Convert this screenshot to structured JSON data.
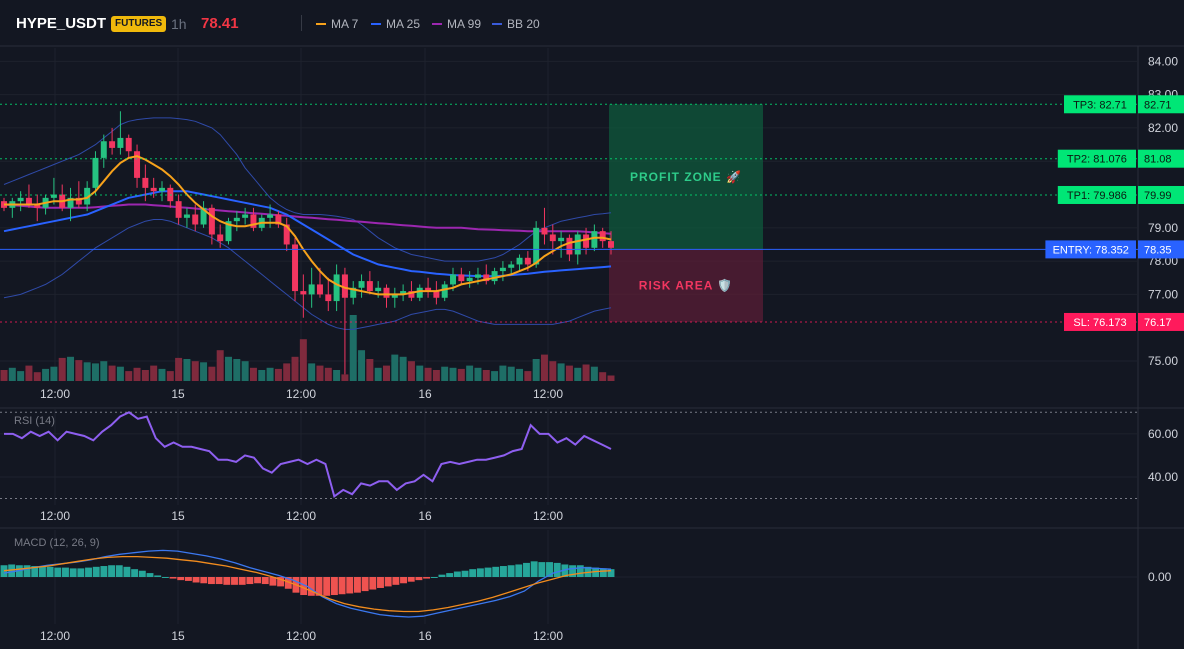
{
  "header": {
    "symbol": "HYPE_USDT",
    "badge": "FUTURES",
    "timeframe": "1h",
    "price": "78.41"
  },
  "legend": [
    {
      "label": "MA 7",
      "color": "#f7a21b"
    },
    {
      "label": "MA 25",
      "color": "#2962ff"
    },
    {
      "label": "MA 99",
      "color": "#9c27b0"
    },
    {
      "label": "BB 20",
      "color": "#3a5bd9"
    }
  ],
  "colors": {
    "up": "#26c281",
    "down": "#f23660",
    "volume_up": "#1e6e66",
    "volume_down": "#7f2a3d",
    "tp": "#00e676",
    "entry": "#2962ff",
    "sl": "#ff1a5c",
    "rsi": "#8e5ff0",
    "macd": "#3b78f0",
    "signal": "#f28c1e",
    "hist_up": "#26a69a",
    "hist_down": "#ef5350"
  },
  "chart_data": [
    {
      "type": "candlestick",
      "ylim": [
        74.4,
        84.4
      ],
      "yticks": [
        "84.00",
        "83.00",
        "82.00",
        "81.00",
        "79.00",
        "78.00",
        "77.00",
        "75.00"
      ],
      "xticks": [
        "12:00",
        "15",
        "12:00",
        "16",
        "12:00"
      ],
      "levels": [
        {
          "name": "TP3",
          "label": "TP3: 82.71",
          "value": 82.71,
          "axis_label": "82.71"
        },
        {
          "name": "TP2",
          "label": "TP2: 81.076",
          "value": 81.076,
          "axis_label": "81.08"
        },
        {
          "name": "TP1",
          "label": "TP1: 79.986",
          "value": 79.986,
          "axis_label": "79.99"
        },
        {
          "name": "ENTRY",
          "label": "ENTRY: 78.352",
          "value": 78.352,
          "axis_label": "78.35"
        },
        {
          "name": "SL",
          "label": "SL: 76.173",
          "value": 76.173,
          "axis_label": "76.17"
        }
      ],
      "zones": {
        "profit_label": "PROFIT ZONE 🚀",
        "risk_label": "RISK AREA 🛡️"
      },
      "candles": [
        [
          79.8,
          79.9,
          79.5,
          79.6
        ],
        [
          79.6,
          79.9,
          79.3,
          79.8
        ],
        [
          79.8,
          80.1,
          79.5,
          79.9
        ],
        [
          79.9,
          80.3,
          79.6,
          79.7
        ],
        [
          79.7,
          80.0,
          79.2,
          79.6
        ],
        [
          79.6,
          80.0,
          79.4,
          79.9
        ],
        [
          79.9,
          80.5,
          79.7,
          80.0
        ],
        [
          80.0,
          80.3,
          79.5,
          79.6
        ],
        [
          79.6,
          80.2,
          79.2,
          79.9
        ],
        [
          79.9,
          80.4,
          79.6,
          79.7
        ],
        [
          79.7,
          80.4,
          79.5,
          80.2
        ],
        [
          80.2,
          81.3,
          80.0,
          81.1
        ],
        [
          81.1,
          81.8,
          80.8,
          81.6
        ],
        [
          81.6,
          82.0,
          81.2,
          81.4
        ],
        [
          81.4,
          82.5,
          81.2,
          81.7
        ],
        [
          81.7,
          81.8,
          81.1,
          81.3
        ],
        [
          81.3,
          81.5,
          80.2,
          80.5
        ],
        [
          80.5,
          80.9,
          79.8,
          80.2
        ],
        [
          80.2,
          80.5,
          79.9,
          80.1
        ],
        [
          80.1,
          80.4,
          79.8,
          80.2
        ],
        [
          80.2,
          80.3,
          79.6,
          79.8
        ],
        [
          79.8,
          80.0,
          79.1,
          79.3
        ],
        [
          79.3,
          79.6,
          79.0,
          79.4
        ],
        [
          79.4,
          79.7,
          78.9,
          79.1
        ],
        [
          79.1,
          79.8,
          79.0,
          79.6
        ],
        [
          79.6,
          79.7,
          78.5,
          78.8
        ],
        [
          78.8,
          79.1,
          78.4,
          78.6
        ],
        [
          78.6,
          79.3,
          78.5,
          79.2
        ],
        [
          79.2,
          79.5,
          78.9,
          79.3
        ],
        [
          79.3,
          79.6,
          79.1,
          79.4
        ],
        [
          79.4,
          79.6,
          78.9,
          79.0
        ],
        [
          79.0,
          79.4,
          78.9,
          79.3
        ],
        [
          79.3,
          79.7,
          79.0,
          79.4
        ],
        [
          79.4,
          79.5,
          79.0,
          79.1
        ],
        [
          79.1,
          79.3,
          78.3,
          78.5
        ],
        [
          78.5,
          78.7,
          76.8,
          77.1
        ],
        [
          77.1,
          77.6,
          76.3,
          77.0
        ],
        [
          77.0,
          77.8,
          76.6,
          77.3
        ],
        [
          77.3,
          77.8,
          76.9,
          77.0
        ],
        [
          77.0,
          77.5,
          76.5,
          76.8
        ],
        [
          76.8,
          77.9,
          76.5,
          77.6
        ],
        [
          77.6,
          77.8,
          74.6,
          76.9
        ],
        [
          76.9,
          77.4,
          76.7,
          77.2
        ],
        [
          77.2,
          77.6,
          76.9,
          77.4
        ],
        [
          77.4,
          77.7,
          77.0,
          77.1
        ],
        [
          77.1,
          77.4,
          76.9,
          77.2
        ],
        [
          77.2,
          77.3,
          76.6,
          76.9
        ],
        [
          76.9,
          77.2,
          76.6,
          77.0
        ],
        [
          77.0,
          77.3,
          76.8,
          77.1
        ],
        [
          77.1,
          77.4,
          76.8,
          76.9
        ],
        [
          76.9,
          77.3,
          76.8,
          77.2
        ],
        [
          77.2,
          77.5,
          76.9,
          77.1
        ],
        [
          77.1,
          77.4,
          76.7,
          76.9
        ],
        [
          76.9,
          77.4,
          76.8,
          77.3
        ],
        [
          77.3,
          77.8,
          77.1,
          77.6
        ],
        [
          77.6,
          77.8,
          77.3,
          77.4
        ],
        [
          77.4,
          77.7,
          77.2,
          77.5
        ],
        [
          77.5,
          77.8,
          77.3,
          77.6
        ],
        [
          77.6,
          77.9,
          77.3,
          77.4
        ],
        [
          77.4,
          77.8,
          77.3,
          77.7
        ],
        [
          77.7,
          78.0,
          77.4,
          77.8
        ],
        [
          77.8,
          78.0,
          77.6,
          77.9
        ],
        [
          77.9,
          78.2,
          77.7,
          78.1
        ],
        [
          78.1,
          78.3,
          77.7,
          77.9
        ],
        [
          77.9,
          79.2,
          77.8,
          79.0
        ],
        [
          79.0,
          79.6,
          78.5,
          78.8
        ],
        [
          78.8,
          79.1,
          78.2,
          78.6
        ],
        [
          78.6,
          78.9,
          78.1,
          78.7
        ],
        [
          78.7,
          78.8,
          78.0,
          78.2
        ],
        [
          78.2,
          78.9,
          77.9,
          78.8
        ],
        [
          78.8,
          79.0,
          78.2,
          78.4
        ],
        [
          78.4,
          79.1,
          78.3,
          78.9
        ],
        [
          78.9,
          79.0,
          78.4,
          78.6
        ],
        [
          78.6,
          78.9,
          78.2,
          78.4
        ]
      ],
      "ma7": [
        79.7,
        79.7,
        79.7,
        79.7,
        79.7,
        79.75,
        79.8,
        79.8,
        79.85,
        79.85,
        79.9,
        80.1,
        80.4,
        80.7,
        80.95,
        81.1,
        81.15,
        81.05,
        80.9,
        80.75,
        80.55,
        80.3,
        80.0,
        79.75,
        79.55,
        79.35,
        79.2,
        79.1,
        79.05,
        79.05,
        79.1,
        79.15,
        79.15,
        79.15,
        79.05,
        78.75,
        78.35,
        78.0,
        77.7,
        77.45,
        77.3,
        77.2,
        77.15,
        77.1,
        77.05,
        77.0,
        77.0,
        77.0,
        77.0,
        77.05,
        77.1,
        77.1,
        77.1,
        77.15,
        77.2,
        77.3,
        77.35,
        77.4,
        77.45,
        77.5,
        77.55,
        77.6,
        77.7,
        77.8,
        77.95,
        78.15,
        78.3,
        78.45,
        78.55,
        78.6,
        78.65,
        78.7,
        78.7,
        78.65
      ],
      "ma25": [
        78.9,
        78.95,
        79.0,
        79.05,
        79.1,
        79.15,
        79.2,
        79.25,
        79.3,
        79.35,
        79.4,
        79.5,
        79.6,
        79.7,
        79.8,
        79.9,
        79.95,
        80.0,
        80.05,
        80.1,
        80.1,
        80.1,
        80.1,
        80.05,
        80.0,
        79.95,
        79.9,
        79.85,
        79.8,
        79.75,
        79.7,
        79.65,
        79.6,
        79.5,
        79.4,
        79.25,
        79.1,
        78.95,
        78.8,
        78.65,
        78.5,
        78.35,
        78.2,
        78.1,
        78.0,
        77.9,
        77.85,
        77.8,
        77.75,
        77.7,
        77.68,
        77.65,
        77.62,
        77.6,
        77.58,
        77.57,
        77.56,
        77.55,
        77.55,
        77.55,
        77.56,
        77.58,
        77.6,
        77.62,
        77.65,
        77.68,
        77.7,
        77.72,
        77.74,
        77.76,
        77.78,
        77.8,
        77.82,
        77.84
      ],
      "ma99": [
        79.7,
        79.68,
        79.66,
        79.64,
        79.62,
        79.6,
        79.6,
        79.6,
        79.6,
        79.6,
        79.6,
        79.62,
        79.64,
        79.66,
        79.68,
        79.7,
        79.7,
        79.7,
        79.68,
        79.66,
        79.64,
        79.62,
        79.6,
        79.58,
        79.56,
        79.54,
        79.52,
        79.5,
        79.48,
        79.46,
        79.44,
        79.42,
        79.4,
        79.38,
        79.36,
        79.34,
        79.32,
        79.3,
        79.28,
        79.26,
        79.24,
        79.22,
        79.2,
        79.18,
        79.16,
        79.14,
        79.12,
        79.1,
        79.08,
        79.06,
        79.04,
        79.02,
        79.0,
        79.0,
        79.0,
        79.0,
        78.98,
        78.96,
        78.95,
        78.94,
        78.93,
        78.92,
        78.91,
        78.9,
        78.9,
        78.9,
        78.9,
        78.9,
        78.9,
        78.9,
        78.88,
        78.86,
        78.84,
        78.82
      ],
      "bb_upper": [
        80.3,
        80.4,
        80.5,
        80.6,
        80.7,
        80.8,
        80.9,
        81.0,
        81.1,
        81.2,
        81.35,
        81.5,
        81.7,
        81.9,
        82.1,
        82.2,
        82.25,
        82.28,
        82.3,
        82.3,
        82.3,
        82.28,
        82.25,
        82.2,
        82.1,
        82.0,
        81.8,
        81.5,
        81.2,
        80.8,
        80.5,
        80.2,
        79.9,
        79.7,
        79.55,
        79.45,
        79.4,
        79.4,
        79.4,
        79.38,
        79.35,
        79.3,
        79.25,
        79.1,
        78.9,
        78.7,
        78.55,
        78.4,
        78.3,
        78.2,
        78.15,
        78.1,
        78.05,
        78.0,
        78.0,
        78.0,
        78.0,
        78.0,
        78.05,
        78.1,
        78.2,
        78.35,
        78.5,
        78.7,
        78.9,
        79.0,
        79.1,
        79.2,
        79.25,
        79.3,
        79.35,
        79.4,
        79.42,
        79.45
      ],
      "bb_lower": [
        76.9,
        76.95,
        77.0,
        77.1,
        77.2,
        77.3,
        77.45,
        77.6,
        77.8,
        78.0,
        78.2,
        78.4,
        78.55,
        78.7,
        78.85,
        79.0,
        79.1,
        79.2,
        79.25,
        79.25,
        79.2,
        79.1,
        79.0,
        78.9,
        78.8,
        78.7,
        78.55,
        78.4,
        78.2,
        78.0,
        77.8,
        77.6,
        77.4,
        77.2,
        77.0,
        76.8,
        76.6,
        76.4,
        76.25,
        76.1,
        76.0,
        75.95,
        75.95,
        76.0,
        76.05,
        76.1,
        76.15,
        76.2,
        76.3,
        76.4,
        76.45,
        76.5,
        76.55,
        76.55,
        76.5,
        76.4,
        76.3,
        76.2,
        76.15,
        76.1,
        76.1,
        76.1,
        76.1,
        76.1,
        76.1,
        76.1,
        76.1,
        76.15,
        76.2,
        76.3,
        76.4,
        76.5,
        76.55,
        76.6
      ],
      "volume": [
        10,
        12,
        9,
        14,
        8,
        11,
        13,
        21,
        22,
        19,
        17,
        16,
        18,
        14,
        13,
        9,
        12,
        10,
        14,
        11,
        9,
        21,
        20,
        18,
        17,
        13,
        28,
        22,
        20,
        18,
        12,
        10,
        12,
        11,
        16,
        22,
        38,
        16,
        14,
        12,
        10,
        6,
        60,
        28,
        20,
        12,
        14,
        24,
        22,
        18,
        14,
        12,
        10,
        13,
        12,
        11,
        14,
        12,
        10,
        9,
        14,
        13,
        11,
        9,
        20,
        24,
        18,
        16,
        14,
        12,
        15,
        13,
        8,
        5
      ]
    },
    {
      "type": "line",
      "name": "RSI (14)",
      "ylim": [
        27,
        72
      ],
      "yticks": [
        "60.00",
        "40.00"
      ],
      "xticks": [
        "12:00",
        "15",
        "12:00",
        "16",
        "12:00"
      ],
      "bands": [
        70,
        30
      ],
      "values": [
        60,
        60,
        58,
        61,
        59,
        61,
        57,
        61,
        60,
        59,
        57,
        61,
        64,
        68,
        70,
        67,
        68,
        58,
        54,
        56,
        54,
        54,
        53,
        52,
        48,
        48,
        47,
        50,
        49,
        44,
        42,
        46,
        47,
        48,
        46,
        48,
        46,
        31,
        34,
        32,
        37,
        36,
        38,
        38,
        34,
        37,
        38,
        41,
        38,
        46,
        47,
        46,
        47,
        48,
        48,
        49,
        50,
        52,
        53,
        64,
        60,
        60,
        56,
        58,
        55,
        59,
        57,
        55,
        53
      ]
    },
    {
      "type": "bar+line",
      "name": "MACD (12, 26, 9)",
      "ylim": [
        -0.6,
        0.6
      ],
      "yticks": [
        "0.00"
      ],
      "xticks": [
        "12:00",
        "15",
        "12:00",
        "16",
        "12:00"
      ],
      "histogram": [
        0.15,
        0.16,
        0.15,
        0.15,
        0.14,
        0.14,
        0.13,
        0.12,
        0.12,
        0.11,
        0.11,
        0.12,
        0.13,
        0.14,
        0.15,
        0.15,
        0.13,
        0.1,
        0.08,
        0.05,
        0.02,
        0.0,
        -0.02,
        -0.04,
        -0.05,
        -0.07,
        -0.08,
        -0.09,
        -0.09,
        -0.1,
        -0.1,
        -0.1,
        -0.09,
        -0.08,
        -0.09,
        -0.11,
        -0.12,
        -0.15,
        -0.2,
        -0.23,
        -0.24,
        -0.24,
        -0.24,
        -0.23,
        -0.22,
        -0.21,
        -0.2,
        -0.18,
        -0.16,
        -0.14,
        -0.12,
        -0.1,
        -0.08,
        -0.06,
        -0.04,
        -0.02,
        0.0,
        0.03,
        0.05,
        0.07,
        0.08,
        0.1,
        0.11,
        0.12,
        0.13,
        0.14,
        0.15,
        0.16,
        0.18,
        0.2,
        0.19,
        0.19,
        0.18,
        0.16,
        0.15,
        0.15,
        0.13,
        0.12,
        0.11,
        0.1
      ],
      "macd": [
        0.05,
        0.08,
        0.12,
        0.15,
        0.17,
        0.19,
        0.22,
        0.26,
        0.29,
        0.31,
        0.33,
        0.34,
        0.33,
        0.3,
        0.27,
        0.23,
        0.18,
        0.12,
        0.07,
        0.02,
        -0.04,
        -0.12,
        -0.25,
        -0.34,
        -0.4,
        -0.44,
        -0.48,
        -0.5,
        -0.51,
        -0.5,
        -0.46,
        -0.42,
        -0.38,
        -0.34,
        -0.3,
        -0.25,
        -0.18,
        -0.05,
        0.05,
        0.1,
        0.12,
        0.11,
        0.1
      ],
      "signal": [
        0.08,
        0.1,
        0.12,
        0.14,
        0.17,
        0.2,
        0.23,
        0.25,
        0.26,
        0.26,
        0.25,
        0.24,
        0.22,
        0.2,
        0.17,
        0.14,
        0.1,
        0.06,
        0.01,
        -0.05,
        -0.12,
        -0.2,
        -0.28,
        -0.34,
        -0.38,
        -0.41,
        -0.43,
        -0.44,
        -0.44,
        -0.42,
        -0.39,
        -0.35,
        -0.31,
        -0.26,
        -0.2,
        -0.14,
        -0.08,
        -0.03,
        0.02,
        0.05,
        0.07,
        0.08
      ]
    }
  ]
}
